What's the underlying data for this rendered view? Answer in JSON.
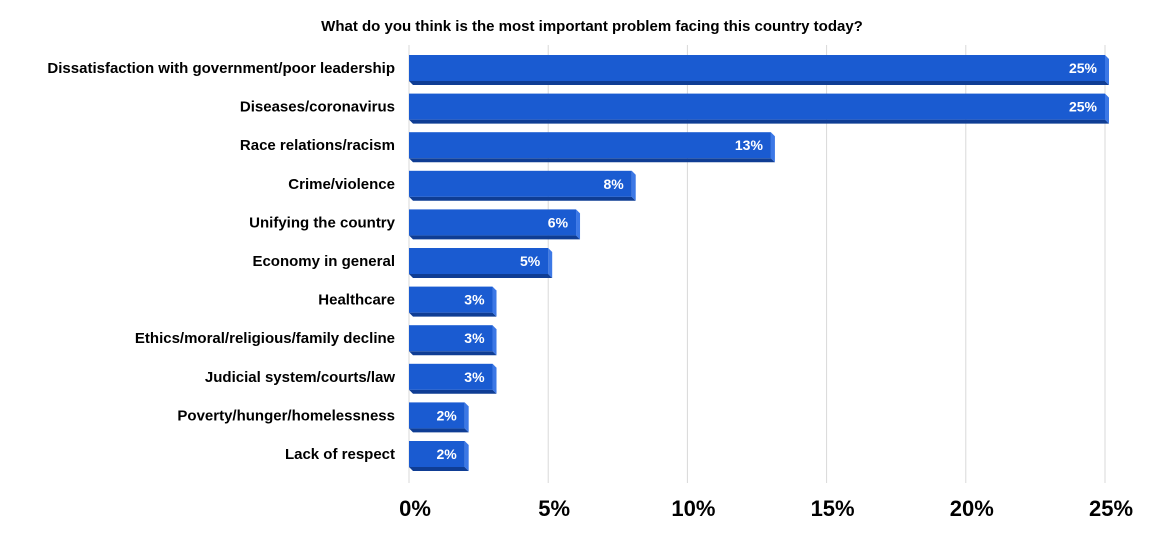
{
  "chart_data": {
    "type": "bar",
    "orientation": "horizontal",
    "title": "What do you think is the most important problem facing this country today?",
    "categories": [
      "Dissatisfaction with government/poor leadership",
      "Diseases/coronavirus",
      "Race relations/racism",
      "Crime/violence",
      "Unifying the country",
      "Economy in general",
      "Healthcare",
      "Ethics/moral/religious/family decline",
      "Judicial system/courts/law",
      "Poverty/hunger/homelessness",
      "Lack of respect"
    ],
    "values": [
      25,
      25,
      13,
      8,
      6,
      5,
      3,
      3,
      3,
      2,
      2
    ],
    "data_labels": [
      "25%",
      "25%",
      "13%",
      "8%",
      "6%",
      "5%",
      "3%",
      "3%",
      "3%",
      "2%",
      "2%"
    ],
    "xlim": [
      0,
      25
    ],
    "xticks": [
      0,
      5,
      10,
      15,
      20,
      25
    ],
    "xtick_labels": [
      "0%",
      "5%",
      "10%",
      "15%",
      "20%",
      "25%"
    ],
    "grid": true,
    "colors": {
      "bar_front": "#1a5bd1",
      "bar_side": "#3c78e6",
      "bar_bottom": "#0f3d94",
      "grid": "#d9d9d9"
    }
  }
}
